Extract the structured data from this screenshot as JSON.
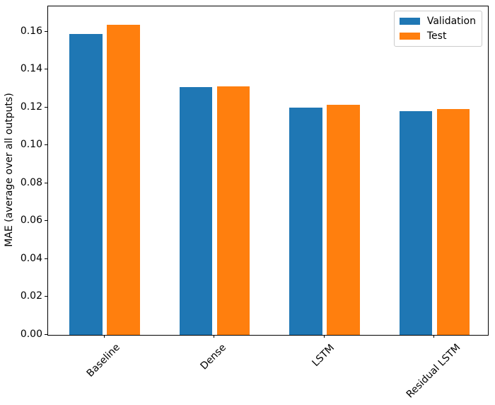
{
  "figure": {
    "background": "#ffffff"
  },
  "chart_data": {
    "type": "bar",
    "title": "",
    "xlabel": "",
    "ylabel": "MAE (average over all outputs)",
    "categories": [
      "Baseline",
      "Dense",
      "LSTM",
      "Residual LSTM"
    ],
    "series": [
      {
        "name": "Validation",
        "color": "#1f77b4",
        "values": [
          0.1589,
          0.1308,
          0.12,
          0.1183
        ]
      },
      {
        "name": "Test",
        "color": "#ff7f0e",
        "values": [
          0.1638,
          0.1311,
          0.1214,
          0.1191
        ]
      }
    ],
    "bar_width": 0.3,
    "group_offsets": [
      -0.17,
      0.17
    ],
    "xlim": [
      -0.515,
      3.485
    ],
    "ylim": [
      0,
      0.1735
    ],
    "yticks": [
      "0.00",
      "0.02",
      "0.04",
      "0.06",
      "0.08",
      "0.10",
      "0.12",
      "0.14",
      "0.16"
    ],
    "ytick_values": [
      0,
      0.02,
      0.04,
      0.06,
      0.08,
      0.1,
      0.12,
      0.14,
      0.16
    ],
    "xtick_rotation_deg": 45,
    "grid": false,
    "legend_position": "upper-right"
  }
}
